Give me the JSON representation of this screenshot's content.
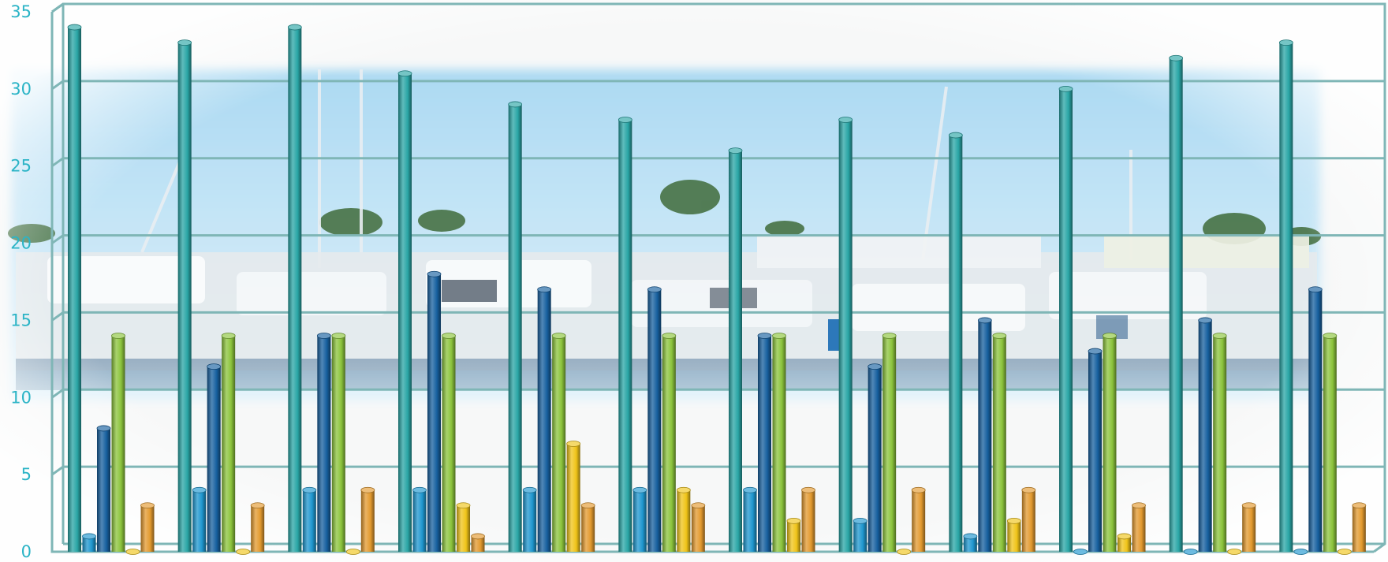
{
  "chart_data": {
    "type": "bar",
    "title": "",
    "xlabel": "",
    "ylabel": "",
    "ylim": [
      0,
      35
    ],
    "yticks": [
      "0",
      "5",
      "10",
      "15",
      "20",
      "25",
      "30",
      "35"
    ],
    "grid": true,
    "legend": "none",
    "categories": [
      "",
      "",
      "",
      "",
      "",
      "",
      "",
      "",
      "",
      "",
      "",
      ""
    ],
    "series": [
      {
        "values": [
          34,
          33,
          34,
          31,
          29,
          28,
          26,
          28,
          27,
          30,
          32,
          33
        ]
      },
      {
        "values": [
          1,
          4,
          4,
          4,
          4,
          4,
          4,
          2,
          1,
          0,
          0,
          0
        ]
      },
      {
        "values": [
          8,
          12,
          14,
          18,
          17,
          17,
          14,
          12,
          15,
          13,
          15,
          17
        ]
      },
      {
        "values": [
          14,
          14,
          14,
          14,
          14,
          14,
          14,
          14,
          14,
          14,
          14,
          14
        ]
      },
      {
        "values": [
          0,
          0,
          0,
          3,
          7,
          4,
          2,
          0,
          2,
          1,
          0,
          0
        ]
      },
      {
        "values": [
          3,
          3,
          4,
          1,
          3,
          3,
          4,
          4,
          4,
          3,
          3,
          3
        ]
      }
    ],
    "colors": [
      "#2aa6a6",
      "#1f97cf",
      "#17609f",
      "#8cc43c",
      "#f0c419",
      "#e39a2f"
    ],
    "tick_color": "#2bb4c6",
    "grid_color": "#7fb6b6"
  }
}
